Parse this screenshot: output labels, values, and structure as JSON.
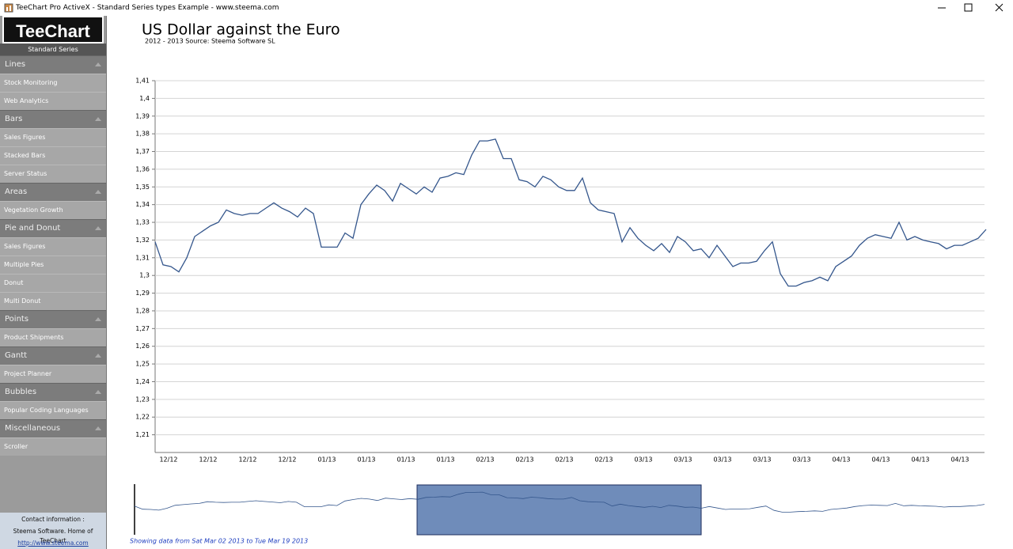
{
  "window": {
    "title": "TeeChart Pro ActiveX - Standard Series types Example - www.steema.com"
  },
  "sidebar": {
    "logo": "TeeChart",
    "subtitle": "Standard Series",
    "sections": [
      {
        "title": "Lines",
        "items": [
          "Stock Monitoring",
          "Web Analytics"
        ]
      },
      {
        "title": "Bars",
        "items": [
          "Sales Figures",
          "Stacked Bars",
          "Server Status"
        ]
      },
      {
        "title": "Areas",
        "items": [
          "Vegetation Growth"
        ]
      },
      {
        "title": "Pie and Donut",
        "items": [
          "Sales Figures",
          "Multiple Pies",
          "Donut",
          "Multi Donut"
        ]
      },
      {
        "title": "Points",
        "items": [
          "Product Shipments"
        ]
      },
      {
        "title": "Gantt",
        "items": [
          "Project Planner"
        ]
      },
      {
        "title": "Bubbles",
        "items": [
          "Popular Coding Languages"
        ]
      },
      {
        "title": "Miscellaneous",
        "items": [
          "Scroller"
        ]
      }
    ],
    "contact": [
      "Contact information :",
      "Steema Software. Home of TeeChart",
      "http://www.steema.com"
    ]
  },
  "chart_data": {
    "type": "line",
    "title": "US Dollar against the Euro",
    "subtitle": "2012 - 2013 Source: Steema Software SL",
    "color": "#34568c",
    "grid": true,
    "categories": [
      null,
      null,
      "12/12",
      null,
      null,
      null,
      null,
      "12/12",
      null,
      null,
      null,
      null,
      "12/12",
      null,
      null,
      null,
      null,
      "12/12",
      null,
      null,
      null,
      null,
      "01/13",
      null,
      null,
      null,
      null,
      "01/13",
      null,
      null,
      null,
      null,
      "01/13",
      null,
      null,
      null,
      null,
      "01/13",
      null,
      null,
      null,
      null,
      "02/13",
      null,
      null,
      null,
      null,
      "02/13",
      null,
      null,
      null,
      null,
      "02/13",
      null,
      null,
      null,
      null,
      "02/13",
      null,
      null,
      null,
      null,
      "03/13",
      null,
      null,
      null,
      null,
      "03/13",
      null,
      null,
      null,
      null,
      "03/13",
      null,
      null,
      null,
      null,
      "03/13",
      null,
      null,
      null,
      null,
      "03/13",
      null,
      null,
      null,
      null,
      "04/13",
      null,
      null,
      null,
      null,
      "04/13",
      null,
      null,
      null,
      null,
      "04/13",
      null,
      null,
      null,
      null,
      "04/13",
      null,
      null,
      null
    ],
    "values": [
      1.319,
      1.306,
      1.305,
      1.302,
      1.31,
      1.322,
      1.325,
      1.328,
      1.33,
      1.337,
      1.335,
      1.334,
      1.335,
      1.335,
      1.338,
      1.341,
      1.338,
      1.336,
      1.333,
      1.338,
      1.335,
      1.316,
      1.316,
      1.316,
      1.324,
      1.321,
      1.34,
      1.346,
      1.351,
      1.348,
      1.342,
      1.352,
      1.349,
      1.346,
      1.35,
      1.347,
      1.355,
      1.356,
      1.358,
      1.357,
      1.368,
      1.376,
      1.376,
      1.377,
      1.366,
      1.366,
      1.354,
      1.353,
      1.35,
      1.356,
      1.354,
      1.35,
      1.348,
      1.348,
      1.355,
      1.341,
      1.337,
      1.336,
      1.335,
      1.319,
      1.327,
      1.321,
      1.317,
      1.314,
      1.318,
      1.313,
      1.322,
      1.319,
      1.314,
      1.315,
      1.31,
      1.317,
      1.311,
      1.305,
      1.307,
      1.307,
      1.308,
      1.314,
      1.319,
      1.301,
      1.294,
      1.294,
      1.296,
      1.297,
      1.299,
      1.297,
      1.305,
      1.308,
      1.311,
      1.317,
      1.321,
      1.323,
      1.322,
      1.321,
      1.33,
      1.32,
      1.322,
      1.32,
      1.319,
      1.318,
      1.315,
      1.317,
      1.317,
      1.319,
      1.321,
      1.326
    ],
    "ylim": [
      1.2,
      1.41
    ],
    "yticks": [
      {
        "value": 1.21,
        "label": "1,21"
      },
      {
        "value": 1.22,
        "label": "1,22"
      },
      {
        "value": 1.23,
        "label": "1,23"
      },
      {
        "value": 1.24,
        "label": "1,24"
      },
      {
        "value": 1.25,
        "label": "1,25"
      },
      {
        "value": 1.26,
        "label": "1,26"
      },
      {
        "value": 1.27,
        "label": "1,27"
      },
      {
        "value": 1.28,
        "label": "1,28"
      },
      {
        "value": 1.29,
        "label": "1,29"
      },
      {
        "value": 1.3,
        "label": "1,3"
      },
      {
        "value": 1.31,
        "label": "1,31"
      },
      {
        "value": 1.32,
        "label": "1,32"
      },
      {
        "value": 1.33,
        "label": "1,33"
      },
      {
        "value": 1.34,
        "label": "1,34"
      },
      {
        "value": 1.35,
        "label": "1,35"
      },
      {
        "value": 1.36,
        "label": "1,36"
      },
      {
        "value": 1.37,
        "label": "1,37"
      },
      {
        "value": 1.38,
        "label": "1,38"
      },
      {
        "value": 1.39,
        "label": "1,39"
      },
      {
        "value": 1.4,
        "label": "1,4"
      },
      {
        "value": 1.41,
        "label": "1,41"
      }
    ]
  },
  "scroller": {
    "caption": "Showing data from Sat Mar 02 2013 to Tue Mar 19 2013"
  }
}
